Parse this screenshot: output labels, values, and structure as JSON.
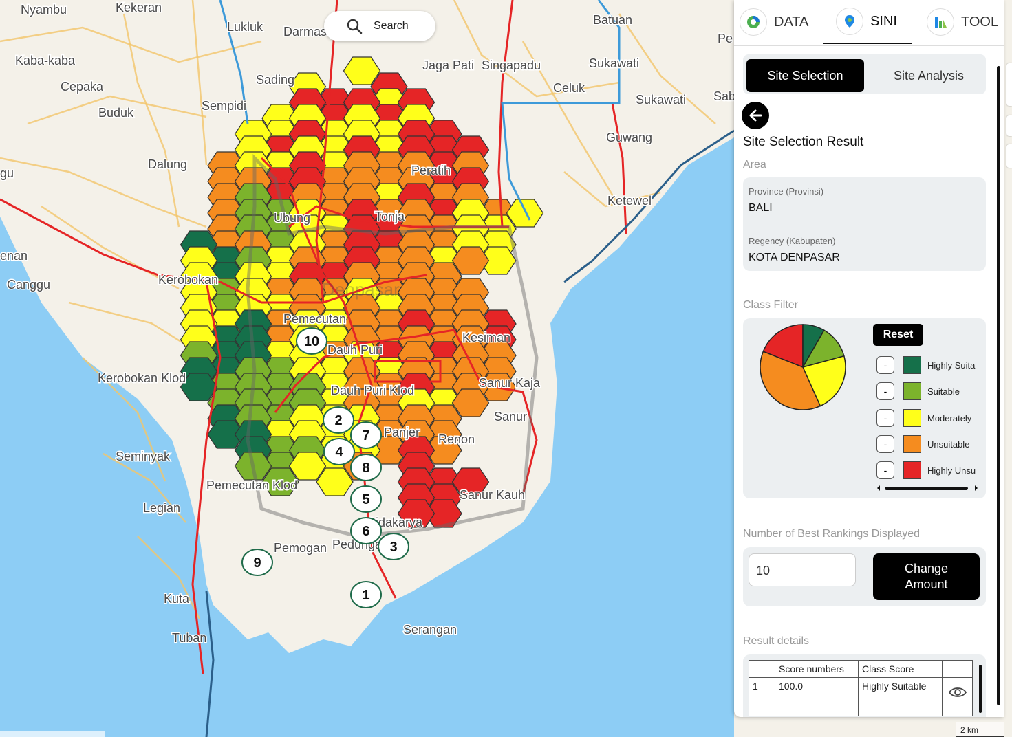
{
  "search": {
    "label": "Search"
  },
  "map": {
    "place_labels": [
      "Nyambu",
      "Kekeran",
      "Lukluk",
      "Darmas",
      "Batuan",
      "Kaba-kaba",
      "Cepaka",
      "Sading",
      "Jaga Pati",
      "Singapadu",
      "Sukawati",
      "Buduk",
      "Sempidi",
      "Celuk",
      "Sukawati",
      "Dalung",
      "Guwang",
      "Peratih",
      "Ketewel",
      "Canggu",
      "Kerobokan",
      "Denpasar",
      "Pemecutan",
      "Dauh Puri",
      "Kesiman",
      "Kerobokan Klod",
      "Dauh Puri Klod",
      "Sanur Kaja",
      "Seminyak",
      "Panjer",
      "Renon",
      "Sanur",
      "Pemecutan Klod",
      "Legian",
      "Sanur Kauh",
      "Pedungan",
      "Pemogan",
      "Sidakarya",
      "Kuta",
      "Tuban",
      "Serangan",
      "gu",
      "enan",
      "Pe",
      "Sab",
      "Ubung",
      "Tonja"
    ],
    "markers": [
      "1",
      "2",
      "3",
      "4",
      "5",
      "6",
      "7",
      "8",
      "9",
      "10"
    ],
    "scale": "2 km",
    "colors": {
      "highly_suitable": "#15704a",
      "suitable": "#7cb32c",
      "moderately": "#ffff1a",
      "unsuitable": "#f58c1f",
      "highly_unsuitable": "#e52526"
    }
  },
  "panel": {
    "tabs": [
      {
        "label": "DATA",
        "icon": "data-chart-icon"
      },
      {
        "label": "SINI",
        "icon": "location-pin-icon",
        "active": true
      },
      {
        "label": "TOOL",
        "icon": "tool-chart-icon"
      }
    ],
    "segments": {
      "active": "Site Selection",
      "inactive": "Site Analysis"
    },
    "title": "Site Selection Result",
    "area_label": "Area",
    "province": {
      "caption": "Province (Provinsi)",
      "value": "BALI"
    },
    "regency": {
      "caption": "Regency (Kabupaten)",
      "value": "KOTA DENPASAR"
    },
    "class_filter": {
      "label": "Class Filter",
      "reset": "Reset",
      "minus": "-",
      "classes": [
        {
          "label": "Highly Suita",
          "color": "#15704a",
          "share": 0.083
        },
        {
          "label": "Suitable",
          "color": "#7cb32c",
          "share": 0.125
        },
        {
          "label": "Moderately",
          "color": "#ffff1a",
          "share": 0.225
        },
        {
          "label": "Unsuitable",
          "color": "#f58c1f",
          "share": 0.377
        },
        {
          "label": "Highly Unsu",
          "color": "#e52526",
          "share": 0.19
        }
      ]
    },
    "rankings": {
      "label": "Number of Best Rankings Displayed",
      "value": "10",
      "button": "Change Amount"
    },
    "results": {
      "label": "Result details",
      "columns": [
        "",
        "Score numbers",
        "Class Score",
        ""
      ],
      "rows": [
        {
          "rank": "1",
          "score": "100.0",
          "class": "Highly Suitable",
          "icon": "eye-icon"
        }
      ]
    }
  }
}
